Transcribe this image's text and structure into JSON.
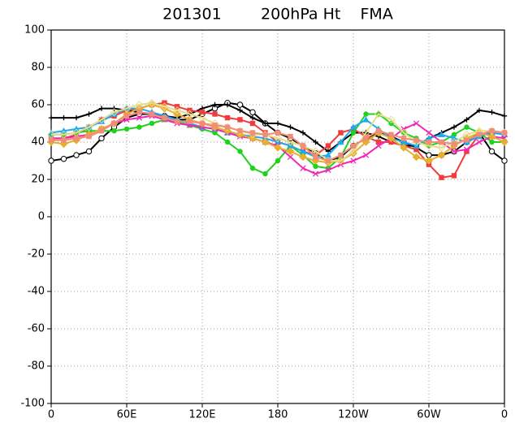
{
  "chart_data": {
    "type": "line",
    "title": "201301        200hPa Ht    FMA",
    "x": [
      0,
      10,
      20,
      30,
      40,
      50,
      60,
      70,
      80,
      90,
      100,
      110,
      120,
      130,
      140,
      150,
      160,
      170,
      180,
      190,
      200,
      210,
      220,
      230,
      240,
      250,
      260,
      270,
      280,
      290,
      300,
      310,
      320,
      330,
      340,
      350,
      360
    ],
    "xlim": [
      0,
      360
    ],
    "xticks": [
      0,
      {
        "value": 60,
        "label": "60E"
      },
      {
        "value": 120,
        "label": "120E"
      },
      180,
      {
        "value": 240,
        "label": "120W"
      },
      {
        "value": 300,
        "label": "60W"
      },
      {
        "value": 360,
        "label": "0"
      }
    ],
    "ylim": [
      -100,
      100
    ],
    "yticks": [
      -100,
      -80,
      -60,
      -40,
      -20,
      0,
      20,
      40,
      60,
      80,
      100
    ],
    "grid": true,
    "series": [
      {
        "color": "#000000",
        "marker": "open-circle",
        "values": [
          30,
          31,
          33,
          35,
          42,
          48,
          53,
          55,
          55,
          54,
          52,
          52,
          55,
          58,
          61,
          60,
          56,
          50,
          45,
          42,
          38,
          34,
          30,
          32,
          38,
          42,
          45,
          43,
          40,
          37,
          33,
          33,
          35,
          40,
          45,
          35,
          30
        ]
      },
      {
        "color": "#000000",
        "marker": "plus",
        "values": [
          53,
          53,
          53,
          55,
          58,
          58,
          57,
          56,
          55,
          54,
          53,
          55,
          58,
          60,
          60,
          57,
          53,
          50,
          50,
          48,
          45,
          40,
          35,
          40,
          45,
          45,
          43,
          40,
          38,
          38,
          42,
          45,
          48,
          52,
          57,
          56,
          54
        ]
      },
      {
        "color": "#f03c3c",
        "marker": "square",
        "values": [
          42,
          42,
          44,
          48,
          52,
          54,
          57,
          58,
          60,
          61,
          59,
          57,
          56,
          55,
          53,
          52,
          50,
          45,
          40,
          38,
          35,
          33,
          38,
          45,
          47,
          43,
          40,
          40,
          38,
          36,
          28,
          21,
          22,
          35,
          44,
          45,
          44
        ]
      },
      {
        "color": "#1ed21e",
        "marker": "circle",
        "values": [
          44,
          44,
          45,
          46,
          46,
          46,
          47,
          48,
          50,
          52,
          51,
          49,
          47,
          45,
          40,
          35,
          26,
          23,
          30,
          38,
          33,
          27,
          26,
          32,
          45,
          55,
          55,
          50,
          45,
          42,
          38,
          40,
          44,
          48,
          45,
          40,
          40
        ]
      },
      {
        "color": "#1eaaf0",
        "marker": "triangle",
        "values": [
          45,
          46,
          47,
          48,
          51,
          55,
          58,
          58,
          56,
          54,
          52,
          50,
          48,
          47,
          45,
          44,
          43,
          42,
          40,
          38,
          35,
          32,
          33,
          40,
          48,
          52,
          47,
          42,
          40,
          38,
          42,
          44,
          42,
          40,
          43,
          45,
          44
        ]
      },
      {
        "color": "#f028b4",
        "marker": "cross",
        "values": [
          42,
          42,
          43,
          44,
          47,
          50,
          52,
          53,
          54,
          52,
          50,
          49,
          48,
          47,
          45,
          43,
          42,
          40,
          38,
          32,
          26,
          23,
          25,
          28,
          30,
          33,
          38,
          42,
          47,
          50,
          45,
          40,
          35,
          36,
          40,
          43,
          42
        ]
      },
      {
        "color": "#e6af2d",
        "marker": "diamond",
        "values": [
          40,
          39,
          41,
          44,
          47,
          50,
          55,
          58,
          60,
          58,
          55,
          52,
          50,
          48,
          46,
          44,
          42,
          40,
          37,
          35,
          32,
          30,
          29,
          30,
          34,
          40,
          45,
          42,
          37,
          32,
          30,
          33,
          38,
          42,
          45,
          43,
          40
        ]
      },
      {
        "color": "#e6dc8c",
        "marker": "open-diamond",
        "values": [
          44,
          44,
          45,
          48,
          52,
          56,
          58,
          60,
          61,
          59,
          57,
          55,
          53,
          50,
          48,
          46,
          44,
          44,
          42,
          40,
          38,
          35,
          30,
          30,
          35,
          45,
          55,
          52,
          45,
          40,
          38,
          37,
          40,
          44,
          46,
          46,
          45
        ]
      },
      {
        "color": "#f08c78",
        "marker": "square",
        "values": [
          41,
          41,
          42,
          43,
          46,
          50,
          54,
          56,
          55,
          53,
          51,
          51,
          50,
          49,
          48,
          46,
          45,
          44,
          45,
          43,
          38,
          32,
          30,
          33,
          38,
          42,
          46,
          44,
          42,
          41,
          40,
          40,
          39,
          41,
          44,
          46,
          45
        ]
      }
    ]
  }
}
